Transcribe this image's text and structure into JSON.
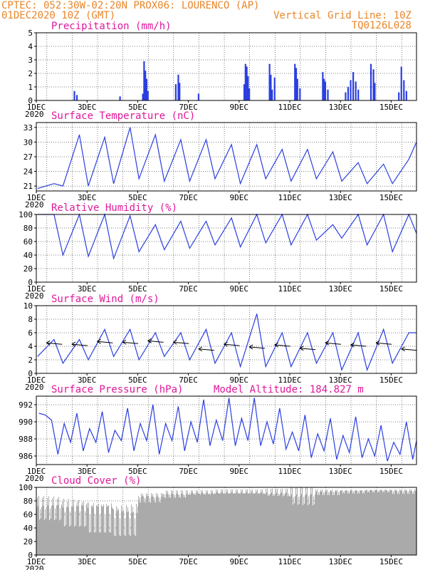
{
  "header": {
    "line1_left": "CPTEC:  052:30W-02:20N  PROX06: LOURENCO (AP)",
    "line2_left": "01DEC2020 10Z (GMT)",
    "line2_right": "Vertical Grid Line: 10Z",
    "line3_right": "TQ0126L028"
  },
  "colors": {
    "header": "#e8862a",
    "title": "#e0189a",
    "series": "#2b3fe0",
    "cloud": "#aaaaaa",
    "wind_arrow": "#000000"
  },
  "chart_data": [
    {
      "type": "bar",
      "title": "Precipitation (mm/h)",
      "ylim": [
        0,
        5
      ],
      "yticks": [
        "0",
        "1",
        "2",
        "3",
        "4",
        "5"
      ],
      "xticks": [
        "1DEC",
        "3DEC",
        "5DEC",
        "7DEC",
        "9DEC",
        "11DEC",
        "13DEC",
        "15DEC"
      ],
      "year_label": "2020",
      "x_unit": "days since 01DEC 00Z",
      "x": [
        1.5,
        1.6,
        3.3,
        4.2,
        4.25,
        4.3,
        4.35,
        4.4,
        5.5,
        5.6,
        5.65,
        6.4,
        8.2,
        8.25,
        8.3,
        8.35,
        8.4,
        9.2,
        9.25,
        9.3,
        9.4,
        10.2,
        10.25,
        10.3,
        10.4,
        11.3,
        11.35,
        11.4,
        11.5,
        12.2,
        12.3,
        12.4,
        12.5,
        12.6,
        12.7,
        13.2,
        13.3,
        13.35,
        14.3,
        14.4,
        14.5,
        14.6
      ],
      "values": [
        0.7,
        0.4,
        0.3,
        0.5,
        2.9,
        2.2,
        1.6,
        0.7,
        1.2,
        1.9,
        1.3,
        0.5,
        1.2,
        2.7,
        2.5,
        1.8,
        0.9,
        2.7,
        1.9,
        0.8,
        1.7,
        2.7,
        2.4,
        1.6,
        0.9,
        2.1,
        1.6,
        1.4,
        0.8,
        0.6,
        1.0,
        1.5,
        2.1,
        1.4,
        0.8,
        2.7,
        2.3,
        1.3,
        0.6,
        2.5,
        1.5,
        0.7
      ]
    },
    {
      "type": "line",
      "title": "Surface Temperature (nC)",
      "ylim": [
        20,
        34
      ],
      "yticks": [
        "21",
        "24",
        "27",
        "30",
        "33"
      ],
      "xticks": [
        "1DEC",
        "3DEC",
        "5DEC",
        "7DEC",
        "9DEC",
        "11DEC",
        "13DEC",
        "15DEC"
      ],
      "year_label": "2020",
      "days": [
        "01DEC",
        "02DEC",
        "03DEC",
        "04DEC",
        "05DEC",
        "06DEC",
        "07DEC",
        "08DEC",
        "09DEC",
        "10DEC",
        "11DEC",
        "12DEC",
        "13DEC",
        "14DEC",
        "15DEC"
      ],
      "daily_max": [
        21.5,
        31.5,
        31.0,
        33.0,
        31.5,
        30.5,
        30.5,
        29.5,
        29.5,
        28.5,
        28.5,
        28.0,
        25.8,
        25.5,
        26.5
      ],
      "daily_min": [
        20.5,
        21.0,
        21.0,
        21.5,
        22.5,
        22.0,
        22.0,
        22.5,
        21.5,
        22.5,
        22.0,
        22.5,
        22.0,
        21.5,
        21.5
      ],
      "last_max": 30.0
    },
    {
      "type": "line",
      "title": "Relative Humidity (%)",
      "ylim": [
        0,
        100
      ],
      "yticks": [
        "0",
        "20",
        "40",
        "60",
        "80",
        "100"
      ],
      "xticks": [
        "1DEC",
        "3DEC",
        "5DEC",
        "7DEC",
        "9DEC",
        "11DEC",
        "13DEC",
        "15DEC"
      ],
      "year_label": "2020",
      "daily_max": [
        100,
        100,
        100,
        98,
        85,
        90,
        90,
        95,
        100,
        100,
        100,
        85,
        100,
        100,
        100
      ],
      "daily_min": [
        100,
        40,
        38,
        35,
        45,
        48,
        50,
        55,
        52,
        58,
        55,
        62,
        65,
        55,
        45
      ],
      "last_max": 72
    },
    {
      "type": "line",
      "title": "Surface Wind (m/s)",
      "ylim": [
        0,
        10
      ],
      "yticks": [
        "0",
        "2",
        "4",
        "6",
        "8",
        "10"
      ],
      "xticks": [
        "1DEC",
        "3DEC",
        "5DEC",
        "7DEC",
        "9DEC",
        "11DEC",
        "13DEC",
        "15DEC"
      ],
      "year_label": "2020",
      "daily_max": [
        5.0,
        5.0,
        6.5,
        6.5,
        6.0,
        6.0,
        6.5,
        6.0,
        8.8,
        6.0,
        6.0,
        6.0,
        6.0,
        6.5,
        6.0
      ],
      "daily_min": [
        2.5,
        1.5,
        2.0,
        2.5,
        2.0,
        2.5,
        2.0,
        1.5,
        1.0,
        1.0,
        1.0,
        1.5,
        0.5,
        0.5,
        1.5
      ],
      "last_max": 6.0,
      "arrow_days": [
        0.4,
        1.4,
        2.4,
        3.4,
        4.4,
        5.4,
        6.4,
        7.4,
        8.4,
        9.4,
        10.4,
        11.4,
        12.4,
        13.4,
        14.4
      ],
      "arrow_levels": [
        4.4,
        4.2,
        4.6,
        4.5,
        4.7,
        4.5,
        3.5,
        4.2,
        3.8,
        4.1,
        3.6,
        4.4,
        4.1,
        4.4,
        3.5
      ]
    },
    {
      "type": "line",
      "title": "Surface Pressure (hPa)",
      "subtitle": "Model Altitude:  184.827 m",
      "ylim": [
        985,
        993
      ],
      "yticks": [
        "986",
        "988",
        "990",
        "992"
      ],
      "xticks": [
        "1DEC",
        "3DEC",
        "5DEC",
        "7DEC",
        "9DEC",
        "11DEC",
        "13DEC",
        "15DEC"
      ],
      "year_label": "2020",
      "half_day_max": [
        991.0,
        990.2,
        989.8,
        991.0,
        989.2,
        991.2,
        989.0,
        991.6,
        989.8,
        992.0,
        989.8,
        991.8,
        990.0,
        992.6,
        990.2,
        992.8,
        990.4,
        992.8,
        990.0,
        991.6,
        988.8,
        990.8,
        988.6,
        990.4,
        988.4,
        990.6,
        988.0,
        989.6,
        987.6,
        990.0
      ],
      "half_day_min": [
        990.8,
        986.2,
        987.6,
        986.6,
        987.6,
        986.4,
        987.8,
        986.6,
        987.8,
        986.2,
        987.8,
        986.6,
        987.6,
        987.2,
        987.8,
        987.2,
        987.8,
        987.2,
        987.4,
        986.8,
        986.6,
        985.8,
        986.6,
        985.6,
        986.4,
        985.8,
        986.0,
        985.4,
        986.2,
        985.6
      ],
      "last_value": 987.8
    },
    {
      "type": "bar",
      "title": "Cloud Cover (%)",
      "ylim": [
        0,
        100
      ],
      "yticks": [
        "0",
        "20",
        "40",
        "60",
        "80",
        "100"
      ],
      "xticks": [
        "1DEC",
        "3DEC",
        "5DEC",
        "7DEC",
        "9DEC",
        "11DEC",
        "13DEC",
        "15DEC"
      ],
      "year_label": "2020",
      "daily_mean": [
        70,
        65,
        60,
        55,
        85,
        90,
        92,
        93,
        93,
        92,
        88,
        93,
        94,
        95,
        94
      ],
      "daily_spread": [
        25,
        30,
        35,
        35,
        10,
        8,
        5,
        5,
        5,
        8,
        20,
        6,
        4,
        3,
        5
      ]
    }
  ]
}
